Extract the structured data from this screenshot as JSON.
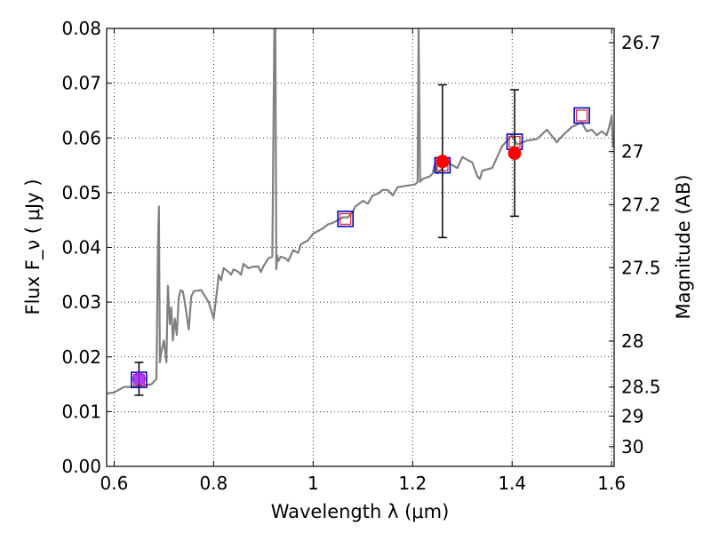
{
  "chart_data": {
    "type": "line",
    "xlabel": "Wavelength  λ (μm)",
    "ylabel": "Flux  F_ν  ( μJy )",
    "y2label": "Magnitude (AB)",
    "xlim": [
      0.585,
      1.605
    ],
    "ylim": [
      0.0,
      0.08
    ],
    "x_ticks": [
      "0.6",
      "0.8",
      "1",
      "1.2",
      "1.4",
      "1.6"
    ],
    "x_tick_values": [
      0.6,
      0.8,
      1.0,
      1.2,
      1.4,
      1.6
    ],
    "y_ticks": [
      "0.00",
      "0.01",
      "0.02",
      "0.03",
      "0.04",
      "0.05",
      "0.06",
      "0.07",
      "0.08"
    ],
    "y_tick_values": [
      0.0,
      0.01,
      0.02,
      0.03,
      0.04,
      0.05,
      0.06,
      0.07,
      0.08
    ],
    "y2_ticks": [
      {
        "label": "26.7",
        "flux": 0.0774
      },
      {
        "label": "27",
        "flux": 0.0575
      },
      {
        "label": "27.2",
        "flux": 0.0478
      },
      {
        "label": "27.5",
        "flux": 0.0363
      },
      {
        "label": "28",
        "flux": 0.0229
      },
      {
        "label": "28.5",
        "flux": 0.0145
      },
      {
        "label": "29",
        "flux": 0.0092
      },
      {
        "label": "30",
        "flux": 0.0036
      }
    ],
    "grid": true,
    "colors": {
      "spectrum": "#808080",
      "model_outer": "#0000cc",
      "model_inner": "#dd2222",
      "observed": "#ff0000",
      "observed_first": "#a020f0",
      "errorbar": "#000000"
    },
    "series": [
      {
        "kind": "spectrum",
        "x": [
          0.585,
          0.6,
          0.61,
          0.62,
          0.64,
          0.66,
          0.675,
          0.685,
          0.688,
          0.69,
          0.692,
          0.695,
          0.7,
          0.705,
          0.708,
          0.712,
          0.715,
          0.718,
          0.722,
          0.726,
          0.73,
          0.734,
          0.738,
          0.742,
          0.75,
          0.755,
          0.76,
          0.775,
          0.79,
          0.8,
          0.808,
          0.81,
          0.815,
          0.82,
          0.83,
          0.835,
          0.84,
          0.85,
          0.855,
          0.86,
          0.87,
          0.88,
          0.89,
          0.895,
          0.9,
          0.91,
          0.918,
          0.922,
          0.924,
          0.926,
          0.928,
          0.93,
          0.935,
          0.945,
          0.95,
          0.96,
          0.97,
          0.975,
          0.98,
          0.99,
          1.0,
          1.01,
          1.02,
          1.03,
          1.04,
          1.06,
          1.07,
          1.08,
          1.085,
          1.09,
          1.1,
          1.11,
          1.12,
          1.13,
          1.14,
          1.15,
          1.16,
          1.17,
          1.19,
          1.205,
          1.21,
          1.212,
          1.215,
          1.22,
          1.235,
          1.24,
          1.245,
          1.25,
          1.27,
          1.29,
          1.3,
          1.31,
          1.32,
          1.33,
          1.335,
          1.34,
          1.36,
          1.37,
          1.38,
          1.39,
          1.4,
          1.41,
          1.43,
          1.45,
          1.47,
          1.49,
          1.5,
          1.52,
          1.54,
          1.55,
          1.56,
          1.57,
          1.58,
          1.59,
          1.595,
          1.6,
          1.603
        ],
        "values": [
          0.0133,
          0.0135,
          0.014,
          0.0145,
          0.0145,
          0.0148,
          0.015,
          0.016,
          0.04,
          0.0475,
          0.019,
          0.021,
          0.023,
          0.019,
          0.033,
          0.026,
          0.029,
          0.023,
          0.027,
          0.024,
          0.031,
          0.0322,
          0.032,
          0.03,
          0.025,
          0.031,
          0.032,
          0.0322,
          0.03,
          0.027,
          0.033,
          0.035,
          0.034,
          0.0362,
          0.0355,
          0.035,
          0.036,
          0.0355,
          0.035,
          0.037,
          0.0362,
          0.0365,
          0.0365,
          0.0355,
          0.0365,
          0.038,
          0.0383,
          0.08,
          0.08,
          0.036,
          0.0385,
          0.0375,
          0.0383,
          0.038,
          0.0375,
          0.0395,
          0.039,
          0.0405,
          0.0408,
          0.0413,
          0.0425,
          0.043,
          0.0435,
          0.0442,
          0.0445,
          0.0455,
          0.0455,
          0.0465,
          0.0475,
          0.0478,
          0.0485,
          0.048,
          0.0495,
          0.0498,
          0.0505,
          0.0505,
          0.0495,
          0.051,
          0.0513,
          0.0515,
          0.052,
          0.08,
          0.052,
          0.0525,
          0.053,
          0.0535,
          0.0553,
          0.0535,
          0.0555,
          0.0545,
          0.0565,
          0.056,
          0.0555,
          0.053,
          0.0525,
          0.054,
          0.0545,
          0.0565,
          0.0585,
          0.0595,
          0.0605,
          0.0588,
          0.0595,
          0.0598,
          0.0615,
          0.0592,
          0.0603,
          0.062,
          0.0628,
          0.0612,
          0.0615,
          0.0605,
          0.0612,
          0.0605,
          0.062,
          0.064,
          0.0582
        ]
      },
      {
        "kind": "model",
        "x": [
          0.65,
          1.065,
          1.26,
          1.405,
          1.54
        ],
        "values": [
          0.0158,
          0.0452,
          0.055,
          0.0593,
          0.0641
        ]
      },
      {
        "kind": "observed",
        "x": [
          0.65,
          1.26,
          1.405
        ],
        "values": [
          0.016,
          0.0557,
          0.0572
        ],
        "err_low": [
          0.013,
          0.0418,
          0.0457
        ],
        "err_high": [
          0.019,
          0.0697,
          0.0688
        ]
      }
    ]
  }
}
